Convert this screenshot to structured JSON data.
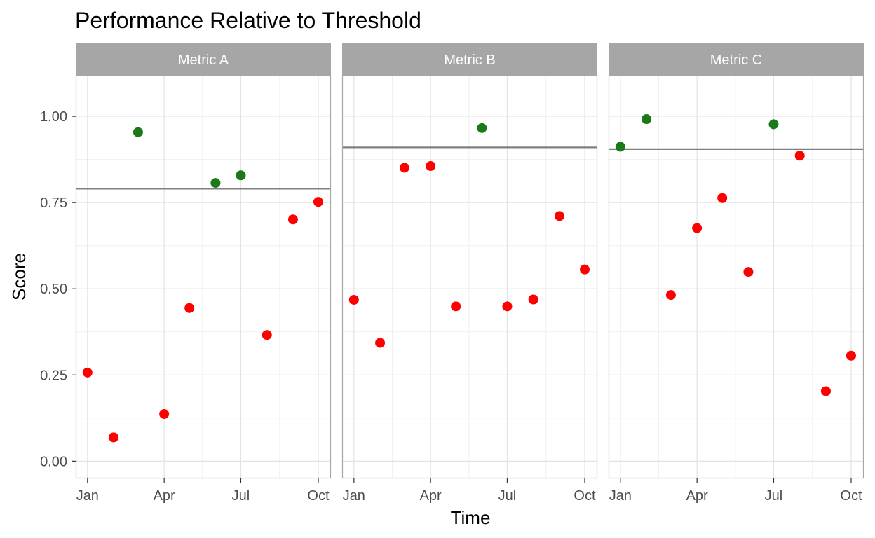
{
  "chart_data": {
    "type": "scatter",
    "title": "Performance Relative to Threshold",
    "xlabel": "Time",
    "ylabel": "Score",
    "ylim": [
      -0.05,
      1.12
    ],
    "xlim": [
      "2023-12-18",
      "2024-10-16"
    ],
    "x_ticks": [
      {
        "date": "2024-01-01",
        "label": "Jan"
      },
      {
        "date": "2024-04-01",
        "label": "Apr"
      },
      {
        "date": "2024-07-01",
        "label": "Jul"
      },
      {
        "date": "2024-10-01",
        "label": "Oct"
      }
    ],
    "y_ticks": [
      {
        "value": 0,
        "label": "0.00"
      },
      {
        "value": 0.25,
        "label": "0.25"
      },
      {
        "value": 0.5,
        "label": "0.50"
      },
      {
        "value": 0.75,
        "label": "0.75"
      },
      {
        "value": 1,
        "label": "1.00"
      }
    ],
    "grid": true,
    "colors": {
      "above": "#1a7a1a",
      "below": "#ff0000",
      "threshold": "#808080",
      "strip": "#a6a6a6",
      "panel_border": "#a6a6a6",
      "grid": "#e3e3e3"
    },
    "panels": [
      {
        "name": "Metric A",
        "threshold": 0.79,
        "x": [
          "2024-01-01",
          "2024-02-01",
          "2024-03-01",
          "2024-04-01",
          "2024-05-01",
          "2024-06-01",
          "2024-07-01",
          "2024-08-01",
          "2024-09-01",
          "2024-10-01"
        ],
        "y": [
          0.257,
          0.069,
          0.954,
          0.137,
          0.444,
          0.807,
          0.829,
          0.366,
          0.701,
          0.752
        ]
      },
      {
        "name": "Metric B",
        "threshold": 0.91,
        "x": [
          "2024-01-01",
          "2024-02-01",
          "2024-03-01",
          "2024-04-01",
          "2024-05-01",
          "2024-06-01",
          "2024-07-01",
          "2024-08-01",
          "2024-09-01",
          "2024-10-01"
        ],
        "y": [
          0.468,
          0.343,
          0.851,
          0.856,
          0.449,
          0.966,
          0.449,
          0.469,
          0.711,
          0.556
        ]
      },
      {
        "name": "Metric C",
        "threshold": 0.905,
        "x": [
          "2024-01-01",
          "2024-02-01",
          "2024-03-01",
          "2024-04-01",
          "2024-05-01",
          "2024-06-01",
          "2024-07-01",
          "2024-08-01",
          "2024-09-01",
          "2024-10-01"
        ],
        "y": [
          0.912,
          0.992,
          0.482,
          0.676,
          0.763,
          0.549,
          0.977,
          0.886,
          0.203,
          0.306
        ]
      }
    ]
  }
}
